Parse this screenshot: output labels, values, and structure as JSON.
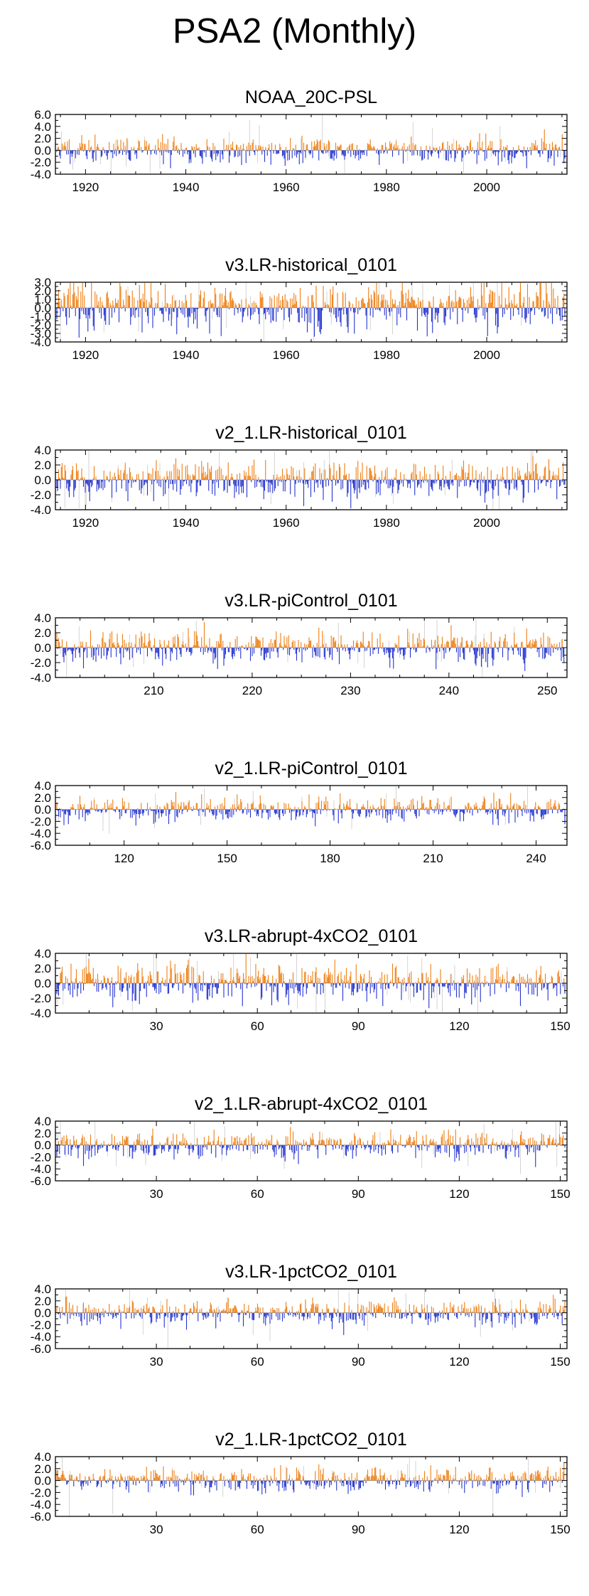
{
  "page_title": "PSA2 (Monthly)",
  "colors": {
    "positive": "#ee7f12",
    "negative": "#2433cf",
    "faint": "#c8c8c8",
    "axis": "#000000"
  },
  "chart_data": [
    {
      "type": "bar",
      "title": "NOAA_20C-PSL",
      "xlim": [
        1914,
        2016
      ],
      "ylim": [
        -4.0,
        6.0
      ],
      "yticks": [
        -4.0,
        -2.0,
        0.0,
        2.0,
        4.0,
        6.0
      ],
      "xticks": [
        1920,
        1940,
        1960,
        1980,
        2000
      ],
      "pos_amp": 1.0,
      "neg_amp": 1.1,
      "faint_amp": 1.8,
      "seed": 11,
      "series": [
        {
          "name": "positive",
          "color": "#ee7f12"
        },
        {
          "name": "negative",
          "color": "#2433cf"
        }
      ]
    },
    {
      "type": "bar",
      "title": "v3.LR-historical_0101",
      "xlim": [
        1914,
        2016
      ],
      "ylim": [
        -4.0,
        3.0
      ],
      "yticks": [
        -4.0,
        -3.0,
        -2.0,
        -1.0,
        0.0,
        1.0,
        2.0,
        3.0
      ],
      "xticks": [
        1920,
        1940,
        1960,
        1980,
        2000
      ],
      "pos_amp": 1.3,
      "neg_amp": 1.4,
      "faint_amp": 1.9,
      "seed": 23,
      "series": [
        {
          "name": "positive",
          "color": "#ee7f12"
        },
        {
          "name": "negative",
          "color": "#2433cf"
        }
      ]
    },
    {
      "type": "bar",
      "title": "v2_1.LR-historical_0101",
      "xlim": [
        1914,
        2016
      ],
      "ylim": [
        -4.0,
        4.0
      ],
      "yticks": [
        -4.0,
        -2.0,
        0.0,
        2.0,
        4.0
      ],
      "xticks": [
        1920,
        1940,
        1960,
        1980,
        2000
      ],
      "pos_amp": 1.1,
      "neg_amp": 1.3,
      "faint_amp": 1.8,
      "seed": 37,
      "series": [
        {
          "name": "positive",
          "color": "#ee7f12"
        },
        {
          "name": "negative",
          "color": "#2433cf"
        }
      ]
    },
    {
      "type": "bar",
      "title": "v3.LR-piControl_0101",
      "xlim": [
        200,
        252
      ],
      "ylim": [
        -4.0,
        4.0
      ],
      "yticks": [
        -4.0,
        -2.0,
        0.0,
        2.0,
        4.0
      ],
      "xticks": [
        210,
        220,
        230,
        240,
        250
      ],
      "pos_amp": 1.0,
      "neg_amp": 1.2,
      "faint_amp": 1.4,
      "seed": 41,
      "series": [
        {
          "name": "positive",
          "color": "#ee7f12"
        },
        {
          "name": "negative",
          "color": "#2433cf"
        }
      ]
    },
    {
      "type": "bar",
      "title": "v2_1.LR-piControl_0101",
      "xlim": [
        100,
        249
      ],
      "ylim": [
        -6.0,
        4.0
      ],
      "yticks": [
        -6.0,
        -4.0,
        -2.0,
        0.0,
        2.0,
        4.0
      ],
      "xticks": [
        120,
        150,
        180,
        210,
        240
      ],
      "pos_amp": 1.0,
      "neg_amp": 1.1,
      "faint_amp": 1.8,
      "seed": 53,
      "series": [
        {
          "name": "positive",
          "color": "#ee7f12"
        },
        {
          "name": "negative",
          "color": "#2433cf"
        }
      ]
    },
    {
      "type": "bar",
      "title": "v3.LR-abrupt-4xCO2_0101",
      "xlim": [
        0,
        152
      ],
      "ylim": [
        -4.0,
        4.0
      ],
      "yticks": [
        -4.0,
        -2.0,
        0.0,
        2.0,
        4.0
      ],
      "xticks": [
        30,
        60,
        90,
        120,
        150
      ],
      "pos_amp": 1.1,
      "neg_amp": 1.2,
      "faint_amp": 1.9,
      "seed": 67,
      "series": [
        {
          "name": "positive",
          "color": "#ee7f12"
        },
        {
          "name": "negative",
          "color": "#2433cf"
        }
      ]
    },
    {
      "type": "bar",
      "title": "v2_1.LR-abrupt-4xCO2_0101",
      "xlim": [
        0,
        152
      ],
      "ylim": [
        -6.0,
        4.0
      ],
      "yticks": [
        -6.0,
        -4.0,
        -2.0,
        0.0,
        2.0,
        4.0
      ],
      "xticks": [
        30,
        60,
        90,
        120,
        150
      ],
      "pos_amp": 1.0,
      "neg_amp": 1.2,
      "faint_amp": 2.0,
      "seed": 79,
      "series": [
        {
          "name": "positive",
          "color": "#ee7f12"
        },
        {
          "name": "negative",
          "color": "#2433cf"
        }
      ]
    },
    {
      "type": "bar",
      "title": "v3.LR-1pctCO2_0101",
      "xlim": [
        0,
        152
      ],
      "ylim": [
        -6.0,
        4.0
      ],
      "yticks": [
        -6.0,
        -4.0,
        -2.0,
        0.0,
        2.0,
        4.0
      ],
      "xticks": [
        30,
        60,
        90,
        120,
        150
      ],
      "pos_amp": 1.0,
      "neg_amp": 1.1,
      "faint_amp": 2.0,
      "seed": 83,
      "series": [
        {
          "name": "positive",
          "color": "#ee7f12"
        },
        {
          "name": "negative",
          "color": "#2433cf"
        }
      ]
    },
    {
      "type": "bar",
      "title": "v2_1.LR-1pctCO2_0101",
      "xlim": [
        0,
        152
      ],
      "ylim": [
        -6.0,
        4.0
      ],
      "yticks": [
        -6.0,
        -4.0,
        -2.0,
        0.0,
        2.0,
        4.0
      ],
      "xticks": [
        30,
        60,
        90,
        120,
        150
      ],
      "pos_amp": 1.0,
      "neg_amp": 1.1,
      "faint_amp": 2.0,
      "seed": 97,
      "series": [
        {
          "name": "positive",
          "color": "#ee7f12"
        },
        {
          "name": "negative",
          "color": "#2433cf"
        }
      ]
    }
  ]
}
